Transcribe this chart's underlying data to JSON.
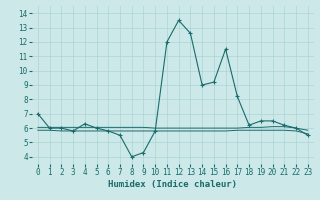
{
  "x": [
    0,
    1,
    2,
    3,
    4,
    5,
    6,
    7,
    8,
    9,
    10,
    11,
    12,
    13,
    14,
    15,
    16,
    17,
    18,
    19,
    20,
    21,
    22,
    23
  ],
  "line1": [
    7.0,
    6.0,
    6.0,
    5.8,
    6.3,
    6.0,
    5.8,
    5.5,
    4.0,
    4.3,
    5.8,
    12.0,
    13.5,
    12.6,
    9.0,
    9.2,
    11.5,
    8.2,
    6.2,
    6.5,
    6.5,
    6.2,
    6.0,
    5.5
  ],
  "y_flat1": [
    6.05,
    6.05,
    6.05,
    6.05,
    6.05,
    6.05,
    6.05,
    6.05,
    6.05,
    6.05,
    6.0,
    6.0,
    6.0,
    6.0,
    6.0,
    6.0,
    6.0,
    6.0,
    6.05,
    6.05,
    6.1,
    6.1,
    6.0,
    5.85
  ],
  "y_flat2": [
    5.85,
    5.85,
    5.8,
    5.8,
    5.8,
    5.8,
    5.8,
    5.8,
    5.8,
    5.8,
    5.8,
    5.8,
    5.8,
    5.8,
    5.8,
    5.8,
    5.8,
    5.85,
    5.85,
    5.85,
    5.85,
    5.85,
    5.8,
    5.6
  ],
  "ylim": [
    3.5,
    14.5
  ],
  "xlim": [
    -0.5,
    23.5
  ],
  "yticks": [
    4,
    5,
    6,
    7,
    8,
    9,
    10,
    11,
    12,
    13,
    14
  ],
  "xticks": [
    0,
    1,
    2,
    3,
    4,
    5,
    6,
    7,
    8,
    9,
    10,
    11,
    12,
    13,
    14,
    15,
    16,
    17,
    18,
    19,
    20,
    21,
    22,
    23
  ],
  "xlabel": "Humidex (Indice chaleur)",
  "line_color": "#1a6b6b",
  "bg_color": "#cce8e8",
  "grid_color": "#aad4d4"
}
